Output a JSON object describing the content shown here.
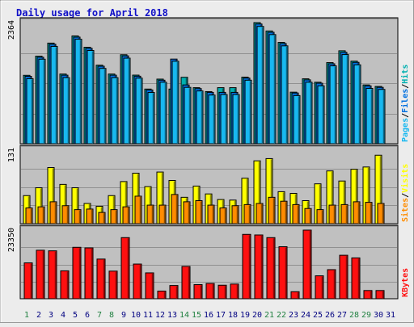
{
  "title": "Daily usage for April 2018",
  "colors": {
    "background": "#ececec",
    "panel": "#c0c0c0",
    "title": "#1010c8",
    "hits": "#00b0b0",
    "files": "#0070e0",
    "pages": "#18b8f0",
    "visits": "#ffff00",
    "sites": "#ff8c00",
    "kbytes": "#ff1010",
    "weekend_label": "#208040",
    "weekday_label": "#000080"
  },
  "chart_data": [
    {
      "type": "bar",
      "panel": "hits-files-pages",
      "ytick_label": "2364",
      "ylabel_parts": [
        "Pages",
        "/",
        "Files",
        "/",
        "Hits"
      ],
      "ylim": [
        0,
        2364
      ],
      "categories": [
        "1",
        "2",
        "3",
        "4",
        "5",
        "6",
        "7",
        "8",
        "9",
        "10",
        "11",
        "12",
        "13",
        "14",
        "15",
        "16",
        "17",
        "18",
        "19",
        "20",
        "21",
        "22",
        "23",
        "24",
        "25",
        "26",
        "27",
        "28",
        "29",
        "30",
        "31"
      ],
      "series": [
        {
          "name": "Hits",
          "values": [
            1335,
            1709,
            1964,
            1360,
            2104,
            1883,
            1533,
            1360,
            1737,
            1339,
            1067,
            1261,
            1067,
            1297,
            1094,
            1017,
            1094,
            1094,
            1300,
            2364,
            2201,
            1977,
            1006,
            1267,
            1200,
            1583,
            1814,
            1612,
            1148,
            1118,
            null
          ]
        },
        {
          "name": "Files",
          "values": [
            1316,
            1688,
            1942,
            1338,
            2081,
            1862,
            1513,
            1338,
            1715,
            1318,
            1050,
            1240,
            1652,
            1148,
            1076,
            1002,
            1002,
            1002,
            1281,
            2337,
            2175,
            1955,
            990,
            1247,
            1181,
            1560,
            1785,
            1588,
            1129,
            1100,
            null
          ]
        },
        {
          "name": "Pages",
          "values": [
            1270,
            1650,
            1900,
            1290,
            2040,
            1820,
            1470,
            1290,
            1670,
            1280,
            1000,
            1200,
            1610,
            1100,
            1030,
            950,
            960,
            960,
            1240,
            2290,
            2130,
            1910,
            940,
            1200,
            1130,
            1520,
            1740,
            1540,
            1080,
            1060,
            null
          ]
        }
      ]
    },
    {
      "type": "bar",
      "panel": "visits-sites",
      "ytick_label": "131",
      "ylabel_parts": [
        "Sites",
        "/",
        "Visits"
      ],
      "ylim": [
        0,
        131
      ],
      "categories": [
        "1",
        "2",
        "3",
        "4",
        "5",
        "6",
        "7",
        "8",
        "9",
        "10",
        "11",
        "12",
        "13",
        "14",
        "15",
        "16",
        "17",
        "18",
        "19",
        "20",
        "21",
        "22",
        "23",
        "24",
        "25",
        "26",
        "27",
        "28",
        "29",
        "30",
        "31"
      ],
      "series": [
        {
          "name": "Visits",
          "values": [
            50,
            64,
            100,
            70,
            64,
            36,
            31,
            50,
            75,
            90,
            66,
            92,
            77,
            47,
            67,
            53,
            43,
            42,
            81,
            112,
            116,
            57,
            54,
            41,
            71,
            94,
            76,
            97,
            101,
            122,
            null
          ]
        },
        {
          "name": "Sites",
          "values": [
            28,
            30,
            39,
            32,
            25,
            26,
            20,
            25,
            30,
            49,
            33,
            33,
            52,
            39,
            41,
            33,
            28,
            32,
            34,
            36,
            47,
            40,
            34,
            27,
            25,
            33,
            34,
            39,
            38,
            36,
            null
          ]
        }
      ]
    },
    {
      "type": "bar",
      "panel": "kbytes",
      "ytick_label": "23350",
      "ylabel_parts": [
        "KBytes"
      ],
      "ylim": [
        0,
        23350
      ],
      "categories": [
        "1",
        "2",
        "3",
        "4",
        "5",
        "6",
        "7",
        "8",
        "9",
        "10",
        "11",
        "12",
        "13",
        "14",
        "15",
        "16",
        "17",
        "18",
        "19",
        "20",
        "21",
        "22",
        "23",
        "24",
        "25",
        "26",
        "27",
        "28",
        "29",
        "30",
        "31"
      ],
      "x_labels": [
        "1",
        "2",
        "3",
        "4",
        "5",
        "6",
        "7",
        "8",
        "9",
        "10",
        "11",
        "12",
        "13",
        "14",
        "15",
        "16",
        "17",
        "18",
        "19",
        "20",
        "21",
        "22",
        "23",
        "24",
        "25",
        "26",
        "27",
        "28",
        "29",
        "30",
        "31"
      ],
      "weekend_days": [
        "1",
        "7",
        "8",
        "14",
        "15",
        "21",
        "22",
        "28",
        "29"
      ],
      "series": [
        {
          "name": "KBytes",
          "values": [
            12200,
            16500,
            16300,
            9500,
            17500,
            17300,
            13500,
            9400,
            20800,
            11800,
            8800,
            2600,
            4500,
            11000,
            4800,
            5200,
            4600,
            5000,
            21900,
            21700,
            20800,
            17700,
            2400,
            23350,
            7800,
            9900,
            14800,
            13900,
            2800,
            2800,
            null
          ]
        }
      ]
    }
  ]
}
